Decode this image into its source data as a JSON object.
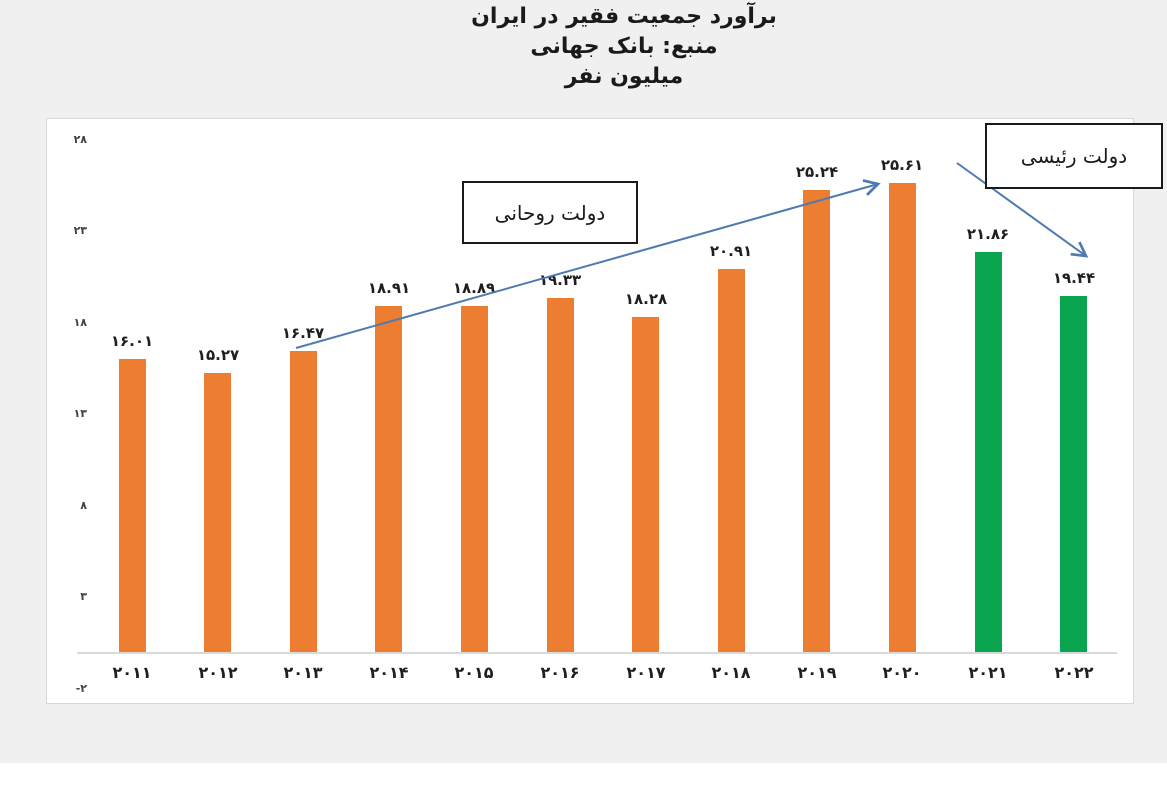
{
  "page": {
    "background_color": "#f0f0f1",
    "panel_color": "#ffffff",
    "title_lines": [
      "برآورد جمعیت فقیر در ایران",
      "منبع: بانک جهانی",
      "میلیون نفر"
    ]
  },
  "colors": {
    "bar_orange": "#ED7D31",
    "bar_green": "#0AA64F",
    "arrow_blue": "#4F7AB1",
    "axis_line": "#d9d9d9",
    "label_text": "#1f1f1f",
    "tick_text": "#3f3f46"
  },
  "chart_data": {
    "type": "bar",
    "title": "برآورد جمعیت فقیر در ایران",
    "source_line": "منبع: بانک جهانی",
    "unit_label": "میلیون نفر",
    "xlabel": "",
    "ylabel": "میلیون نفر",
    "categories": [
      "2011",
      "2012",
      "2013",
      "2014",
      "2015",
      "2016",
      "2017",
      "2018",
      "2019",
      "2020",
      "2021",
      "2022"
    ],
    "category_labels_fa": [
      "۲۰۱۱",
      "۲۰۱۲",
      "۲۰۱۳",
      "۲۰۱۴",
      "۲۰۱۵",
      "۲۰۱۶",
      "۲۰۱۷",
      "۲۰۱۸",
      "۲۰۱۹",
      "۲۰۲۰",
      "۲۰۲۱",
      "۲۰۲۲"
    ],
    "values": [
      16.01,
      15.27,
      16.47,
      18.91,
      18.89,
      19.33,
      18.28,
      20.91,
      25.24,
      25.61,
      21.86,
      19.44
    ],
    "value_labels_fa": [
      "۱۶.۰۱",
      "۱۵.۲۷",
      "۱۶.۴۷",
      "۱۸.۹۱",
      "۱۸.۸۹",
      "۱۹.۳۳",
      "۱۸.۲۸",
      "۲۰.۹۱",
      "۲۵.۲۴",
      "۲۵.۶۱",
      "۲۱.۸۶",
      "۱۹.۴۴"
    ],
    "bar_colors": [
      "#ED7D31",
      "#ED7D31",
      "#ED7D31",
      "#ED7D31",
      "#ED7D31",
      "#ED7D31",
      "#ED7D31",
      "#ED7D31",
      "#ED7D31",
      "#ED7D31",
      "#0AA64F",
      "#0AA64F"
    ],
    "ylim": [
      -2,
      28
    ],
    "y_ticks": [
      28,
      23,
      18,
      13,
      8,
      3,
      -2
    ],
    "y_tick_labels_fa": [
      "۲۸",
      "۲۳",
      "۱۸",
      "۱۳",
      "۸",
      "۳",
      "-۲"
    ],
    "grid": false,
    "legend": "none",
    "annotations": [
      {
        "text": "دولت روحانی",
        "arrow_direction": "up-right",
        "points_to_category": "2020"
      },
      {
        "text": "دولت رئیسی",
        "arrow_direction": "down-right",
        "points_to_category": "2022"
      }
    ]
  }
}
